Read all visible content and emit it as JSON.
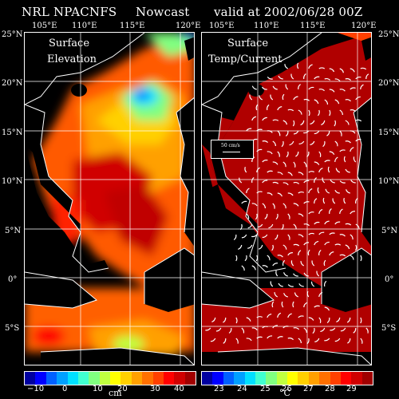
{
  "header": {
    "model": "NRL NPACNFS",
    "product": "Nowcast",
    "valid": "valid at 2002/06/28 00Z"
  },
  "lon_labels": [
    "105°E",
    "110°E",
    "115°E",
    "120°E"
  ],
  "lat_labels": [
    "25°N",
    "20°N",
    "15°N",
    "10°N",
    "5°N",
    "0°",
    "5°S"
  ],
  "left_panel": {
    "label_line1": "Surface",
    "label_line2": "Elevation"
  },
  "right_panel": {
    "label_line1": "Surface",
    "label_line2": "Temp/Current"
  },
  "vector_legend": {
    "label": "50 cm/s"
  },
  "colorbar_left": {
    "ticks": [
      "−10",
      "0",
      "10",
      "20",
      "30",
      "40"
    ],
    "unit": "cm",
    "colors": [
      "#0000a0",
      "#0000ff",
      "#0060ff",
      "#00a0ff",
      "#00e0ff",
      "#40ffd0",
      "#80ff80",
      "#c0ff40",
      "#ffff00",
      "#ffd000",
      "#ffa000",
      "#ff7000",
      "#ff4000",
      "#ff0000",
      "#d00000",
      "#a00000"
    ]
  },
  "colorbar_right": {
    "ticks": [
      "23",
      "24",
      "25",
      "26",
      "27",
      "28",
      "29"
    ],
    "unit": "°C",
    "colors": [
      "#0000a0",
      "#0000ff",
      "#0060ff",
      "#00a0ff",
      "#00e0ff",
      "#40ffd0",
      "#80ff80",
      "#c0ff40",
      "#ffff00",
      "#ffd000",
      "#ffa000",
      "#ff7000",
      "#ff4000",
      "#ff0000",
      "#d00000",
      "#a00000"
    ]
  }
}
